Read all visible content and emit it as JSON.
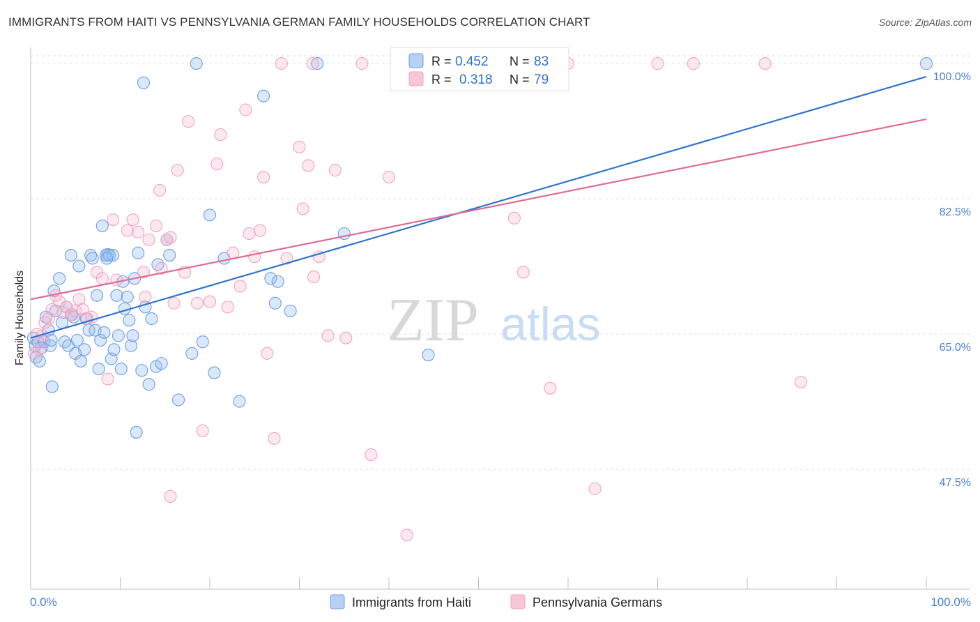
{
  "title": "IMMIGRANTS FROM HAITI VS PENNSYLVANIA GERMAN FAMILY HOUSEHOLDS CORRELATION CHART",
  "source": "Source: ZipAtlas.com",
  "watermark": {
    "zip": "ZIP",
    "atlas": "atlas"
  },
  "colors": {
    "haiti": "#6d9ee6",
    "haiti_line": "#2f74d0",
    "pagerman": "#f2a3bd",
    "pagerman_line": "#e06b96",
    "axis_text": "#4a7fd6"
  },
  "legend": {
    "series": [
      {
        "r_label": "R =",
        "r_value": "0.452",
        "n_label": "N =",
        "n_value": "83"
      },
      {
        "r_label": "R =",
        "r_value": "0.318",
        "n_label": "N =",
        "n_value": "79"
      }
    ]
  },
  "chart_data": {
    "type": "scatter",
    "ylabel": "Family Households",
    "xlabel": "",
    "xlim": [
      0,
      100
    ],
    "ylim": [
      32,
      101
    ],
    "x_tick_labels": [
      "0.0%",
      "100.0%"
    ],
    "y_ticks": [
      47.5,
      65.0,
      82.5,
      100.0
    ],
    "y_tick_labels": [
      "47.5%",
      "65.0%",
      "82.5%",
      "100.0%"
    ],
    "grid": true,
    "legend_position": "top-center",
    "series": [
      {
        "name": "Immigrants from Haiti",
        "trend": {
          "x": [
            0,
            100
          ],
          "y": [
            64.5,
            98.3
          ]
        },
        "points": [
          [
            0.3,
            64.5
          ],
          [
            0.5,
            63.5
          ],
          [
            0.6,
            62.0
          ],
          [
            0.8,
            64.0
          ],
          [
            1.0,
            61.5
          ],
          [
            1.2,
            63.2
          ],
          [
            1.5,
            64.0
          ],
          [
            1.7,
            67.2
          ],
          [
            2.0,
            65.5
          ],
          [
            2.2,
            63.5
          ],
          [
            2.3,
            64.2
          ],
          [
            2.4,
            58.2
          ],
          [
            2.6,
            70.6
          ],
          [
            2.8,
            68.0
          ],
          [
            3.2,
            72.2
          ],
          [
            3.5,
            66.5
          ],
          [
            3.8,
            64.0
          ],
          [
            4.0,
            68.5
          ],
          [
            4.2,
            63.5
          ],
          [
            4.5,
            75.2
          ],
          [
            4.6,
            67.5
          ],
          [
            4.8,
            67.2
          ],
          [
            5.0,
            62.5
          ],
          [
            5.2,
            64.2
          ],
          [
            5.4,
            73.8
          ],
          [
            5.6,
            61.5
          ],
          [
            6.0,
            63.0
          ],
          [
            6.2,
            67.0
          ],
          [
            6.5,
            65.5
          ],
          [
            6.7,
            75.2
          ],
          [
            6.9,
            74.8
          ],
          [
            7.2,
            65.5
          ],
          [
            7.4,
            70.0
          ],
          [
            7.6,
            60.5
          ],
          [
            7.8,
            64.2
          ],
          [
            8.0,
            79.0
          ],
          [
            8.2,
            65.2
          ],
          [
            8.4,
            75.2
          ],
          [
            8.6,
            75.3
          ],
          [
            8.8,
            75.2
          ],
          [
            9.0,
            61.8
          ],
          [
            9.3,
            63.0
          ],
          [
            9.6,
            70.0
          ],
          [
            9.8,
            64.8
          ],
          [
            10.1,
            60.5
          ],
          [
            10.3,
            71.8
          ],
          [
            10.5,
            68.3
          ],
          [
            10.8,
            69.8
          ],
          [
            11.0,
            66.8
          ],
          [
            11.2,
            63.5
          ],
          [
            11.4,
            64.8
          ],
          [
            11.6,
            72.2
          ],
          [
            12.0,
            75.5
          ],
          [
            12.4,
            60.3
          ],
          [
            12.8,
            68.5
          ],
          [
            13.2,
            58.5
          ],
          [
            13.5,
            67.0
          ],
          [
            14.0,
            60.8
          ],
          [
            14.6,
            61.2
          ],
          [
            14.2,
            74.0
          ],
          [
            15.2,
            77.2
          ],
          [
            15.5,
            75.2
          ],
          [
            16.5,
            56.5
          ],
          [
            18.0,
            62.5
          ],
          [
            19.2,
            64.0
          ],
          [
            12.6,
            97.5
          ],
          [
            18.5,
            100.0
          ],
          [
            9.2,
            75.2
          ],
          [
            20.0,
            80.4
          ],
          [
            20.5,
            60.0
          ],
          [
            21.6,
            74.8
          ],
          [
            23.3,
            56.3
          ],
          [
            26.0,
            95.8
          ],
          [
            26.8,
            72.2
          ],
          [
            27.3,
            69.0
          ],
          [
            27.6,
            71.8
          ],
          [
            29.0,
            68.0
          ],
          [
            32.0,
            100.0
          ],
          [
            35.0,
            78.0
          ],
          [
            44.4,
            62.3
          ],
          [
            100.0,
            100.0
          ],
          [
            11.8,
            52.3
          ],
          [
            8.5,
            74.8
          ]
        ]
      },
      {
        "name": "Pennsylvania Germans",
        "trend": {
          "x": [
            0,
            100
          ],
          "y": [
            69.5,
            92.8
          ]
        },
        "points": [
          [
            0.4,
            62.5
          ],
          [
            0.7,
            65.0
          ],
          [
            1.0,
            63.0
          ],
          [
            1.3,
            64.8
          ],
          [
            1.6,
            66.5
          ],
          [
            2.0,
            67.0
          ],
          [
            2.4,
            68.2
          ],
          [
            2.8,
            70.0
          ],
          [
            3.2,
            69.2
          ],
          [
            3.6,
            67.8
          ],
          [
            4.0,
            68.5
          ],
          [
            4.5,
            67.5
          ],
          [
            5.0,
            68.0
          ],
          [
            5.4,
            69.5
          ],
          [
            5.8,
            68.2
          ],
          [
            6.3,
            67.0
          ],
          [
            6.8,
            67.2
          ],
          [
            7.4,
            73.0
          ],
          [
            8.0,
            72.2
          ],
          [
            8.6,
            59.2
          ],
          [
            9.2,
            79.8
          ],
          [
            9.6,
            72.0
          ],
          [
            10.8,
            78.4
          ],
          [
            11.4,
            79.8
          ],
          [
            12.0,
            78.2
          ],
          [
            12.6,
            73.0
          ],
          [
            12.8,
            69.8
          ],
          [
            13.2,
            77.2
          ],
          [
            14.0,
            79.0
          ],
          [
            14.6,
            73.5
          ],
          [
            15.2,
            77.2
          ],
          [
            15.6,
            77.5
          ],
          [
            16.0,
            69.0
          ],
          [
            16.4,
            86.2
          ],
          [
            17.2,
            73.0
          ],
          [
            17.6,
            92.5
          ],
          [
            14.4,
            83.6
          ],
          [
            18.6,
            69.0
          ],
          [
            19.2,
            52.5
          ],
          [
            20.0,
            69.2
          ],
          [
            20.8,
            87.0
          ],
          [
            21.2,
            90.8
          ],
          [
            22.0,
            68.5
          ],
          [
            22.6,
            75.5
          ],
          [
            23.4,
            71.2
          ],
          [
            24.0,
            94.0
          ],
          [
            24.4,
            78.0
          ],
          [
            25.0,
            75.0
          ],
          [
            25.6,
            78.4
          ],
          [
            26.0,
            85.3
          ],
          [
            26.4,
            62.5
          ],
          [
            27.2,
            51.5
          ],
          [
            28.0,
            100.0
          ],
          [
            28.6,
            74.8
          ],
          [
            30.0,
            89.2
          ],
          [
            30.4,
            81.2
          ],
          [
            31.0,
            86.8
          ],
          [
            31.6,
            72.4
          ],
          [
            32.2,
            75.0
          ],
          [
            33.2,
            64.8
          ],
          [
            34.0,
            86.2
          ],
          [
            35.2,
            64.5
          ],
          [
            38.0,
            49.4
          ],
          [
            40.0,
            85.3
          ],
          [
            41.0,
            100.0
          ],
          [
            42.0,
            39.0
          ],
          [
            43.0,
            100.0
          ],
          [
            54.0,
            80.0
          ],
          [
            55.0,
            73.0
          ],
          [
            58.0,
            58.0
          ],
          [
            60.0,
            100.0
          ],
          [
            63.0,
            45.0
          ],
          [
            70.0,
            100.0
          ],
          [
            74.0,
            100.0
          ],
          [
            82.0,
            100.0
          ],
          [
            86.0,
            58.8
          ],
          [
            37.0,
            100.0
          ],
          [
            15.6,
            44.0
          ],
          [
            31.5,
            100.0
          ]
        ]
      }
    ]
  },
  "bottom_legend": [
    "Immigrants from Haiti",
    "Pennsylvania Germans"
  ]
}
